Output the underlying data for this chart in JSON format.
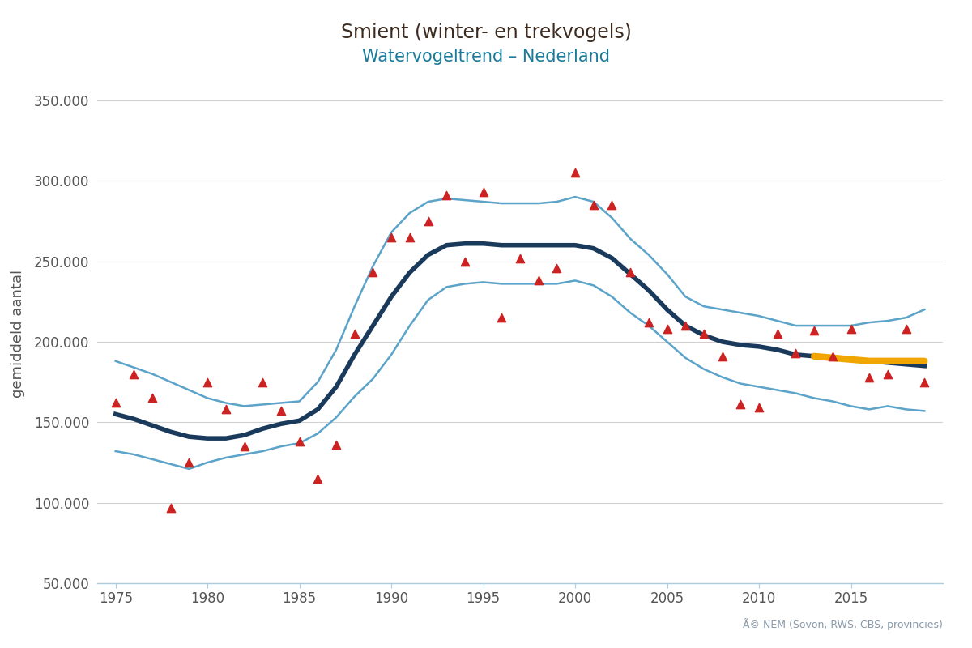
{
  "title": "Smient (winter- en trekvogels)",
  "subtitle": "Watervogeltrend – Nederland",
  "ylabel": "gemiddeld aantal",
  "title_color": "#3d2b1f",
  "subtitle_color": "#1a7a9a",
  "background_color": "#ffffff",
  "ylabel_color": "#555555",
  "tick_label_color": "#555555",
  "copyright_text": "Ã© NEM (Sovon, RWS, CBS, provincies)",
  "ylim": [
    50000,
    360000
  ],
  "yticks": [
    50000,
    100000,
    150000,
    200000,
    250000,
    300000,
    350000
  ],
  "ytick_labels": [
    "50.000",
    "100.000",
    "150.000",
    "200.000",
    "250.000",
    "300.000",
    "350.000"
  ],
  "xlim": [
    1974,
    2020
  ],
  "xticks": [
    1975,
    1980,
    1985,
    1990,
    1995,
    2000,
    2005,
    2010,
    2015
  ],
  "trend_x": [
    1975,
    1976,
    1977,
    1978,
    1979,
    1980,
    1981,
    1982,
    1983,
    1984,
    1985,
    1986,
    1987,
    1988,
    1989,
    1990,
    1991,
    1992,
    1993,
    1994,
    1995,
    1996,
    1997,
    1998,
    1999,
    2000,
    2001,
    2002,
    2003,
    2004,
    2005,
    2006,
    2007,
    2008,
    2009,
    2010,
    2011,
    2012,
    2013,
    2014,
    2015,
    2016,
    2017,
    2018,
    2019
  ],
  "trend_y": [
    155000,
    152000,
    148000,
    144000,
    141000,
    140000,
    140000,
    142000,
    146000,
    149000,
    151000,
    158000,
    172000,
    192000,
    210000,
    228000,
    243000,
    254000,
    260000,
    261000,
    261000,
    260000,
    260000,
    260000,
    260000,
    260000,
    258000,
    252000,
    242000,
    232000,
    220000,
    210000,
    204000,
    200000,
    198000,
    197000,
    195000,
    192000,
    191000,
    190000,
    189000,
    188000,
    187000,
    186000,
    185000
  ],
  "upper_ci": [
    188000,
    184000,
    180000,
    175000,
    170000,
    165000,
    162000,
    160000,
    161000,
    162000,
    163000,
    175000,
    195000,
    222000,
    247000,
    268000,
    280000,
    287000,
    289000,
    288000,
    287000,
    286000,
    286000,
    286000,
    287000,
    290000,
    287000,
    277000,
    264000,
    254000,
    242000,
    228000,
    222000,
    220000,
    218000,
    216000,
    213000,
    210000,
    210000,
    210000,
    210000,
    212000,
    213000,
    215000,
    220000
  ],
  "lower_ci": [
    132000,
    130000,
    127000,
    124000,
    121000,
    125000,
    128000,
    130000,
    132000,
    135000,
    137000,
    143000,
    153000,
    166000,
    177000,
    192000,
    210000,
    226000,
    234000,
    236000,
    237000,
    236000,
    236000,
    236000,
    236000,
    238000,
    235000,
    228000,
    218000,
    210000,
    200000,
    190000,
    183000,
    178000,
    174000,
    172000,
    170000,
    168000,
    165000,
    163000,
    160000,
    158000,
    160000,
    158000,
    157000
  ],
  "orange_line_x": [
    2013,
    2014,
    2015,
    2016,
    2017,
    2018,
    2019
  ],
  "orange_line_y": [
    191000,
    190000,
    189000,
    188000,
    188000,
    188000,
    188000
  ],
  "scatter_x": [
    1975,
    1976,
    1977,
    1978,
    1979,
    1980,
    1981,
    1982,
    1983,
    1984,
    1985,
    1986,
    1987,
    1988,
    1989,
    1990,
    1991,
    1992,
    1993,
    1994,
    1995,
    1996,
    1997,
    1998,
    1999,
    2000,
    2001,
    2002,
    2003,
    2004,
    2005,
    2006,
    2007,
    2008,
    2009,
    2010,
    2011,
    2012,
    2013,
    2014,
    2015,
    2016,
    2017,
    2018,
    2019
  ],
  "scatter_y": [
    162000,
    180000,
    165000,
    97000,
    125000,
    175000,
    158000,
    135000,
    175000,
    157000,
    138000,
    115000,
    136000,
    205000,
    243000,
    265000,
    265000,
    275000,
    291000,
    250000,
    293000,
    215000,
    252000,
    238000,
    246000,
    305000,
    285000,
    285000,
    243000,
    212000,
    208000,
    210000,
    205000,
    191000,
    161000,
    159000,
    205000,
    193000,
    207000,
    191000,
    208000,
    178000,
    180000,
    208000,
    175000
  ],
  "trend_color": "#1a3a5c",
  "ci_color": "#5ba3c9",
  "scatter_color": "#cc2222",
  "orange_color": "#f0a500",
  "grid_color": "#d0d0d0",
  "axis_color": "#aaccdd",
  "copyright_color": "#8899aa"
}
